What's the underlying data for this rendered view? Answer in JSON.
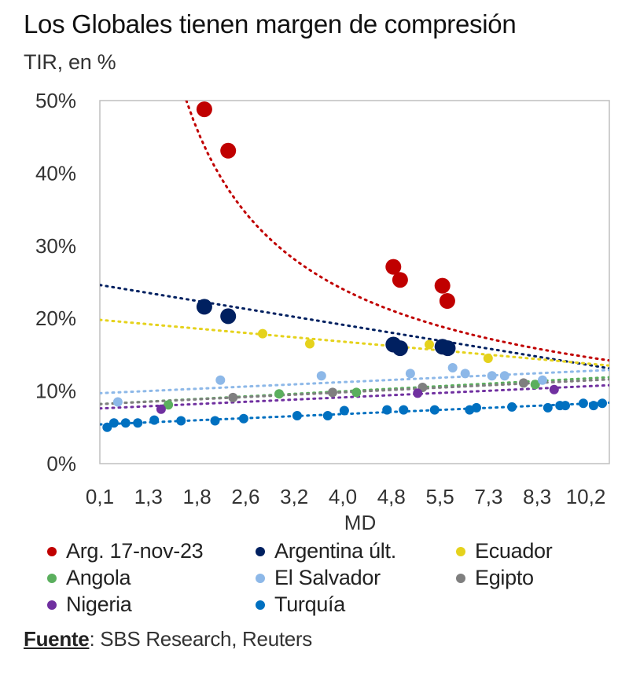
{
  "header": {
    "title": "Los Globales tienen margen de compresión",
    "subtitle": "TIR, en %"
  },
  "source": {
    "label": "Fuente",
    "text": ": SBS Research, Reuters"
  },
  "chart_data": {
    "type": "scatter",
    "title": "Los Globales tienen margen de compresión",
    "subtitle": "TIR, en %",
    "xlabel": "MD",
    "ylabel": "TIR, en %",
    "x_note": "x values are positions on an ordinal MD axis, in tick-index units (0 = '0,1' ... 10 = '10,2')",
    "x_tick_labels": [
      "0,1",
      "1,3",
      "1,8",
      "2,6",
      "3,2",
      "4,0",
      "4,8",
      "5,5",
      "7,3",
      "8,3",
      "10,2"
    ],
    "xlim": [
      0,
      10.5
    ],
    "y_tick_labels": [
      "0%",
      "10%",
      "20%",
      "30%",
      "40%",
      "50%"
    ],
    "ylim": [
      0,
      50
    ],
    "grid": false,
    "legend_position": "bottom",
    "series": [
      {
        "name": "Arg. 17-nov-23",
        "color": "#C00000",
        "size": "large",
        "points": [
          [
            2.15,
            48.8
          ],
          [
            2.64,
            43.1
          ],
          [
            6.04,
            27.1
          ],
          [
            6.18,
            25.3
          ],
          [
            7.05,
            24.5
          ],
          [
            7.15,
            22.4
          ]
        ],
        "trend": {
          "type": "power",
          "from": [
            1.78,
            50
          ],
          "to": [
            10.5,
            14.2
          ]
        }
      },
      {
        "name": "Argentina últ.",
        "color": "#002060",
        "size": "large",
        "points": [
          [
            2.15,
            21.6
          ],
          [
            2.64,
            20.3
          ],
          [
            6.04,
            16.4
          ],
          [
            6.18,
            15.9
          ],
          [
            7.05,
            16.1
          ],
          [
            7.16,
            15.9
          ]
        ],
        "trend": {
          "type": "linear",
          "from": [
            0,
            24.6
          ],
          "to": [
            10.5,
            13.1
          ]
        }
      },
      {
        "name": "Ecuador",
        "color": "#E5D21C",
        "size": "small",
        "points": [
          [
            3.35,
            17.9
          ],
          [
            4.32,
            16.5
          ],
          [
            6.78,
            16.4
          ],
          [
            7.99,
            14.5
          ]
        ],
        "trend": {
          "type": "linear",
          "from": [
            0,
            19.8
          ],
          "to": [
            10.5,
            13.5
          ]
        }
      },
      {
        "name": "Angola",
        "color": "#5BAF5E",
        "size": "small",
        "points": [
          [
            1.41,
            8.1
          ],
          [
            3.69,
            9.6
          ],
          [
            5.28,
            9.8
          ],
          [
            8.96,
            10.9
          ]
        ],
        "trend": {
          "type": "linear",
          "from": [
            0,
            8.2
          ],
          "to": [
            10.5,
            11.9
          ]
        }
      },
      {
        "name": "El Salvador",
        "color": "#8DB8E8",
        "size": "small",
        "points": [
          [
            0.37,
            8.5
          ],
          [
            2.48,
            11.5
          ],
          [
            4.56,
            12.1
          ],
          [
            6.39,
            12.4
          ],
          [
            7.26,
            13.2
          ],
          [
            7.52,
            12.4
          ],
          [
            8.07,
            12.1
          ],
          [
            8.33,
            12.1
          ],
          [
            9.11,
            11.5
          ]
        ],
        "trend": {
          "type": "linear",
          "from": [
            0,
            9.7
          ],
          "to": [
            10.5,
            12.9
          ]
        }
      },
      {
        "name": "Egipto",
        "color": "#7F7F7F",
        "size": "small",
        "points": [
          [
            2.74,
            9.1
          ],
          [
            4.79,
            9.8
          ],
          [
            6.64,
            10.5
          ],
          [
            8.72,
            11.1
          ]
        ],
        "trend": {
          "type": "linear",
          "from": [
            0,
            8.2
          ],
          "to": [
            10.5,
            11.6
          ]
        }
      },
      {
        "name": "Nigeria",
        "color": "#7030A0",
        "size": "small",
        "points": [
          [
            1.26,
            7.5
          ],
          [
            6.54,
            9.7
          ],
          [
            9.35,
            10.2
          ]
        ],
        "trend": {
          "type": "linear",
          "from": [
            0,
            7.6
          ],
          "to": [
            10.5,
            10.8
          ]
        }
      },
      {
        "name": "Turquía",
        "color": "#0070C0",
        "size": "small",
        "points": [
          [
            0.15,
            5.0
          ],
          [
            0.29,
            5.6
          ],
          [
            0.53,
            5.6
          ],
          [
            0.78,
            5.6
          ],
          [
            1.12,
            6.0
          ],
          [
            1.67,
            5.9
          ],
          [
            2.37,
            5.9
          ],
          [
            2.96,
            6.2
          ],
          [
            4.06,
            6.6
          ],
          [
            4.69,
            6.6
          ],
          [
            5.03,
            7.3
          ],
          [
            5.91,
            7.4
          ],
          [
            6.25,
            7.4
          ],
          [
            6.89,
            7.4
          ],
          [
            7.61,
            7.4
          ],
          [
            7.75,
            7.7
          ],
          [
            8.48,
            7.8
          ],
          [
            9.22,
            7.7
          ],
          [
            9.47,
            8.0
          ],
          [
            9.58,
            8.0
          ],
          [
            9.95,
            8.3
          ],
          [
            10.16,
            8.0
          ],
          [
            10.34,
            8.3
          ]
        ],
        "trend": {
          "type": "linear",
          "from": [
            0,
            5.4
          ],
          "to": [
            10.5,
            8.4
          ]
        }
      }
    ]
  }
}
